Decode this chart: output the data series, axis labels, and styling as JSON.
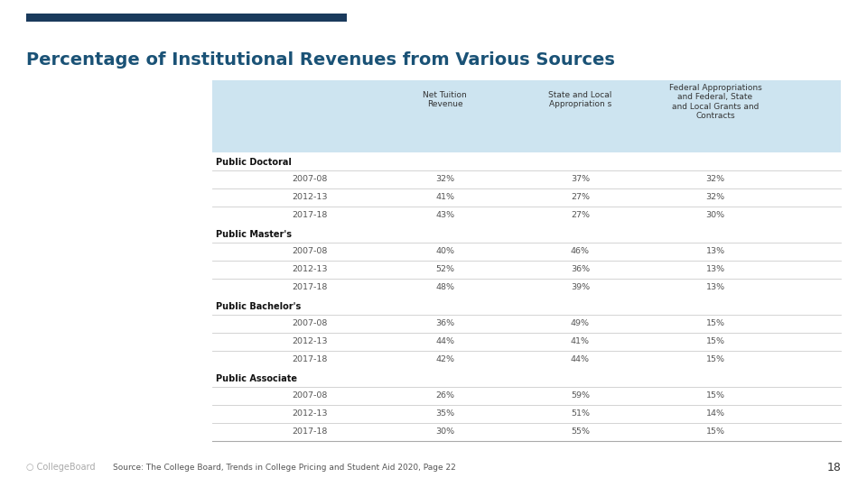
{
  "title": "Percentage of Institutional Revenues from Various Sources",
  "title_color": "#1a5276",
  "accent_bar_color": "#1a3a5c",
  "header_bg_color": "#cde4f0",
  "col_headers": [
    "",
    "Net Tuition\nRevenue",
    "State and Local\nAppropriation s",
    "Federal Appropriations\nand Federal, State\nand Local Grants and\nContracts"
  ],
  "sections": [
    {
      "label": "Public Doctoral",
      "rows": [
        [
          "2007-08",
          "32%",
          "37%",
          "32%"
        ],
        [
          "2012-13",
          "41%",
          "27%",
          "32%"
        ],
        [
          "2017-18",
          "43%",
          "27%",
          "30%"
        ]
      ]
    },
    {
      "label": "Public Master's",
      "rows": [
        [
          "2007-08",
          "40%",
          "46%",
          "13%"
        ],
        [
          "2012-13",
          "52%",
          "36%",
          "13%"
        ],
        [
          "2017-18",
          "48%",
          "39%",
          "13%"
        ]
      ]
    },
    {
      "label": "Public Bachelor's",
      "rows": [
        [
          "2007-08",
          "36%",
          "49%",
          "15%"
        ],
        [
          "2012-13",
          "44%",
          "41%",
          "15%"
        ],
        [
          "2017-18",
          "42%",
          "44%",
          "15%"
        ]
      ]
    },
    {
      "label": "Public Associate",
      "rows": [
        [
          "2007-08",
          "26%",
          "59%",
          "15%"
        ],
        [
          "2012-13",
          "35%",
          "51%",
          "14%"
        ],
        [
          "2017-18",
          "30%",
          "55%",
          "15%"
        ]
      ]
    }
  ],
  "footer_source": "Source: The College Board, Trends in College Pricing and Student Aid 2020, Page 22",
  "footer_page": "18",
  "bg_color": "#ffffff",
  "row_line_color": "#cccccc",
  "section_label_color": "#111111",
  "data_text_color": "#555555",
  "year_text_color": "#555555"
}
